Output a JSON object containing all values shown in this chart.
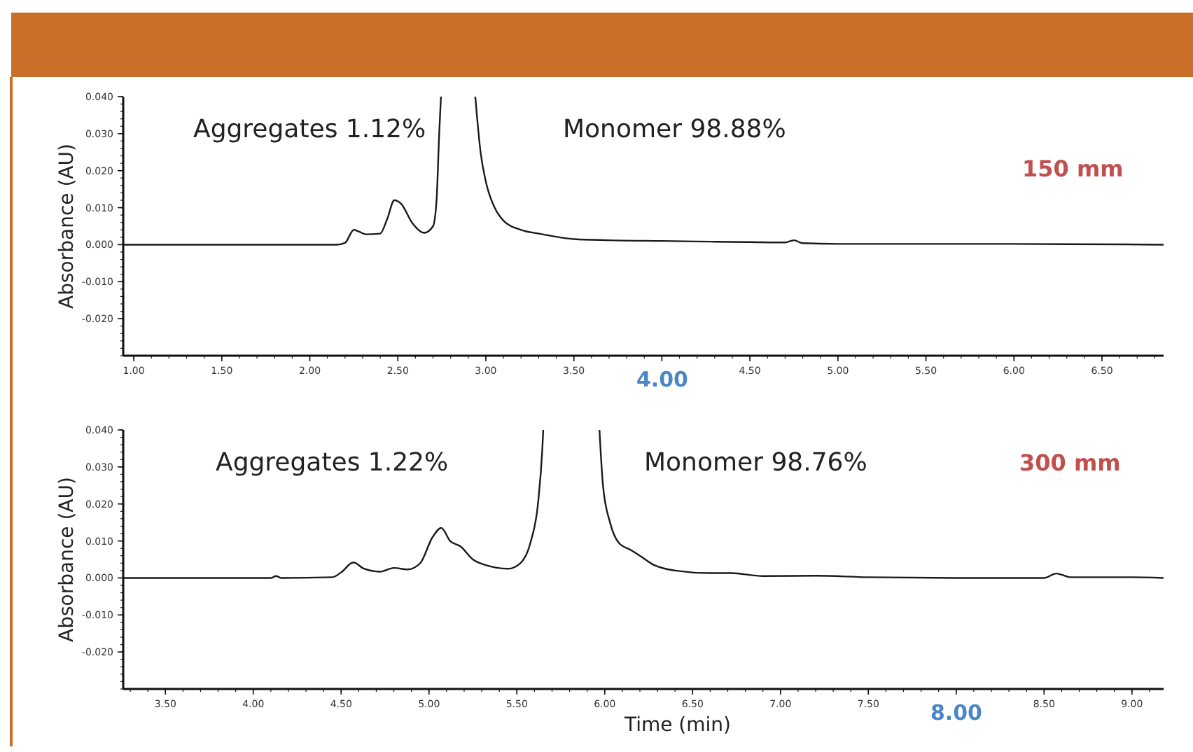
{
  "chart_data": [
    {
      "type": "line",
      "ylabel": "Absorbance (AU)",
      "xlim": [
        0.94,
        6.85
      ],
      "ylim": [
        -0.03,
        0.04
      ],
      "xticks": [
        {
          "value": 1,
          "label": "1.00"
        },
        {
          "value": 1.5,
          "label": "1.50"
        },
        {
          "value": 2,
          "label": "2.00"
        },
        {
          "value": 2.5,
          "label": "2.50"
        },
        {
          "value": 3,
          "label": "3.00"
        },
        {
          "value": 3.5,
          "label": "3.50"
        },
        {
          "value": 4,
          "label": null
        },
        {
          "value": 4.5,
          "label": "4.50"
        },
        {
          "value": 5,
          "label": "5.00"
        },
        {
          "value": 5.5,
          "label": "5.50"
        },
        {
          "value": 6,
          "label": "6.00"
        },
        {
          "value": 6.5,
          "label": "6.50"
        }
      ],
      "yticks": [
        {
          "value": -0.02,
          "label": "-0.020"
        },
        {
          "value": -0.01,
          "label": "-0.010"
        },
        {
          "value": 0,
          "label": "0.000"
        },
        {
          "value": 0.01,
          "label": "0.010"
        },
        {
          "value": 0.02,
          "label": "0.020"
        },
        {
          "value": 0.03,
          "label": "0.030"
        },
        {
          "value": 0.04,
          "label": "0.040"
        }
      ],
      "annotations": [
        "Aggregates 1.12%",
        "Monomer 98.88%",
        "150 mm",
        "4.00"
      ],
      "series": [
        {
          "color": "#1a1a1a",
          "x": [
            0.94,
            2.15,
            2.2,
            2.25,
            2.28,
            2.32,
            2.4,
            2.44,
            2.48,
            2.52,
            2.58,
            2.65,
            2.7,
            2.72,
            2.735,
            2.745,
            2.85,
            2.94,
            2.97,
            3.0,
            3.05,
            3.1,
            3.2,
            3.3,
            3.5,
            3.7,
            4.0,
            4.3,
            4.5,
            4.7,
            4.75,
            4.8,
            5.0,
            6.0,
            6.85
          ],
          "values": [
            0,
            0,
            0.0005,
            0.004,
            0.0035,
            0.0028,
            0.003,
            0.007,
            0.012,
            0.011,
            0.006,
            0.0032,
            0.005,
            0.012,
            0.03,
            0.04,
            null,
            0.04,
            0.025,
            0.017,
            0.01,
            0.0065,
            0.004,
            0.003,
            0.0015,
            0.0012,
            0.001,
            0.0008,
            0.0007,
            0.0006,
            0.0012,
            0.0004,
            0.0002,
            0.0002,
            0
          ]
        }
      ]
    },
    {
      "type": "line",
      "ylabel": "Absorbance (AU)",
      "xlabel": "Time (min)",
      "xlim": [
        3.26,
        9.18
      ],
      "ylim": [
        -0.03,
        0.04
      ],
      "xticks": [
        {
          "value": 3.5,
          "label": "3.50"
        },
        {
          "value": 4,
          "label": "4.00"
        },
        {
          "value": 4.5,
          "label": "4.50"
        },
        {
          "value": 5,
          "label": "5.00"
        },
        {
          "value": 5.5,
          "label": "5.50"
        },
        {
          "value": 6,
          "label": "6.00"
        },
        {
          "value": 6.5,
          "label": "6.50"
        },
        {
          "value": 7,
          "label": "7.00"
        },
        {
          "value": 7.5,
          "label": "7.50"
        },
        {
          "value": 8,
          "label": null
        },
        {
          "value": 8.5,
          "label": "8.50"
        },
        {
          "value": 9,
          "label": "9.00"
        }
      ],
      "yticks": [
        {
          "value": -0.02,
          "label": "-0.020"
        },
        {
          "value": -0.01,
          "label": "-0.010"
        },
        {
          "value": 0,
          "label": "0.000"
        },
        {
          "value": 0.01,
          "label": "0.010"
        },
        {
          "value": 0.02,
          "label": "0.020"
        },
        {
          "value": 0.03,
          "label": "0.030"
        },
        {
          "value": 0.04,
          "label": "0.040"
        }
      ],
      "annotations": [
        "Aggregates 1.22%",
        "Monomer 98.76%",
        "300 mm",
        "8.00"
      ],
      "series": [
        {
          "color": "#1a1a1a",
          "x": [
            3.26,
            4.1,
            4.13,
            4.16,
            4.45,
            4.5,
            4.57,
            4.63,
            4.72,
            4.8,
            4.88,
            4.95,
            5.02,
            5.07,
            5.12,
            5.18,
            5.25,
            5.32,
            5.45,
            5.52,
            5.58,
            5.62,
            5.645,
            5.65,
            5.8,
            5.97,
            5.99,
            6.03,
            6.08,
            6.15,
            6.2,
            6.28,
            6.4,
            6.6,
            6.72,
            6.9,
            7.2,
            7.5,
            8.0,
            8.5,
            8.57,
            8.65,
            9.0,
            9.18
          ],
          "values": [
            0,
            0,
            0.0005,
            0,
            0.0002,
            0.0015,
            0.0042,
            0.0025,
            0.0017,
            0.0027,
            0.0023,
            0.004,
            0.011,
            0.0135,
            0.01,
            0.0085,
            0.005,
            0.0035,
            0.0025,
            0.004,
            0.01,
            0.02,
            0.035,
            0.04,
            null,
            0.04,
            0.025,
            0.015,
            0.0095,
            0.0075,
            0.006,
            0.0035,
            0.002,
            0.0013,
            0.0013,
            0.0005,
            0.0006,
            0.0002,
            0,
            0,
            0.0012,
            0.0002,
            0.0002,
            0
          ]
        }
      ]
    }
  ]
}
